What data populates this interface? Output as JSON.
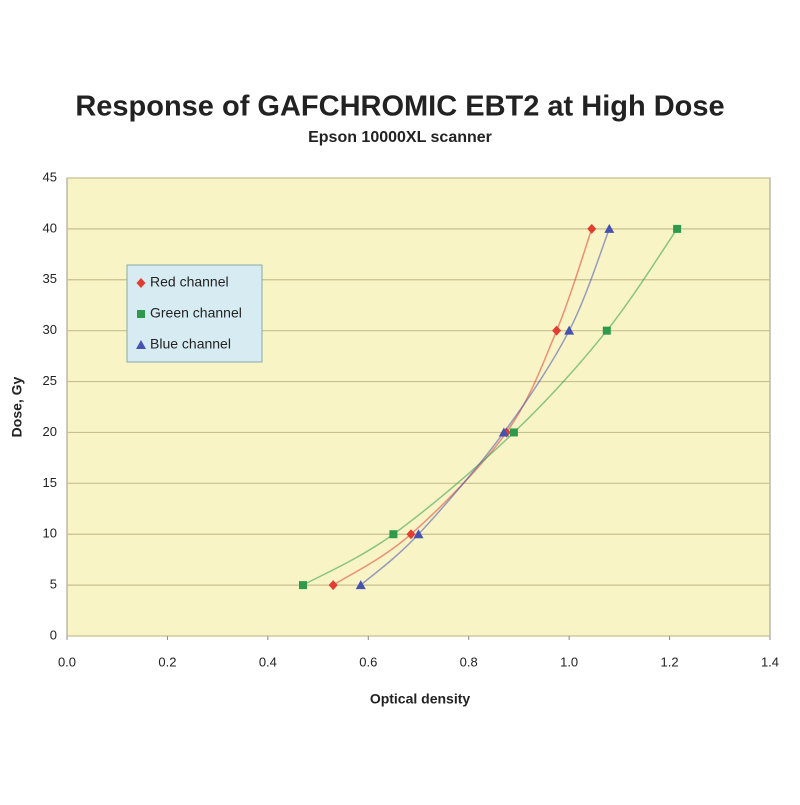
{
  "chart_data": {
    "type": "scatter",
    "title": "Response of GAFCHROMIC EBT2 at High Dose",
    "subtitle": "Epson 10000XL scanner",
    "x_label": "Optical density",
    "y_label": "Dose, Gy",
    "xlim": [
      0,
      1.4
    ],
    "xticks": [
      {
        "value": 0,
        "label": "0.0"
      },
      0.2,
      0.4,
      0.6,
      0.8,
      {
        "value": 1,
        "label": "1.0"
      },
      1.2,
      1.4
    ],
    "ylim": [
      0,
      45
    ],
    "yticks": [
      0,
      5,
      10,
      15,
      20,
      25,
      30,
      35,
      40,
      45
    ],
    "grid": true,
    "legend": "upper left",
    "series": [
      {
        "name": "Red channel",
        "color": "#e23d33",
        "marker": "diamond",
        "x": [
          0.53,
          0.685,
          0.875,
          0.975,
          1.045
        ],
        "values": [
          5,
          10,
          20,
          30,
          40
        ]
      },
      {
        "name": "Green channel",
        "color": "#2f9a4c",
        "marker": "square",
        "x": [
          0.47,
          0.65,
          0.89,
          1.075,
          1.215
        ],
        "values": [
          5,
          10,
          20,
          30,
          40
        ]
      },
      {
        "name": "Blue channel",
        "color": "#4652b0",
        "marker": "triangle",
        "x": [
          0.585,
          0.7,
          0.87,
          1.0,
          1.08
        ],
        "values": [
          5,
          10,
          20,
          30,
          40
        ]
      }
    ]
  }
}
